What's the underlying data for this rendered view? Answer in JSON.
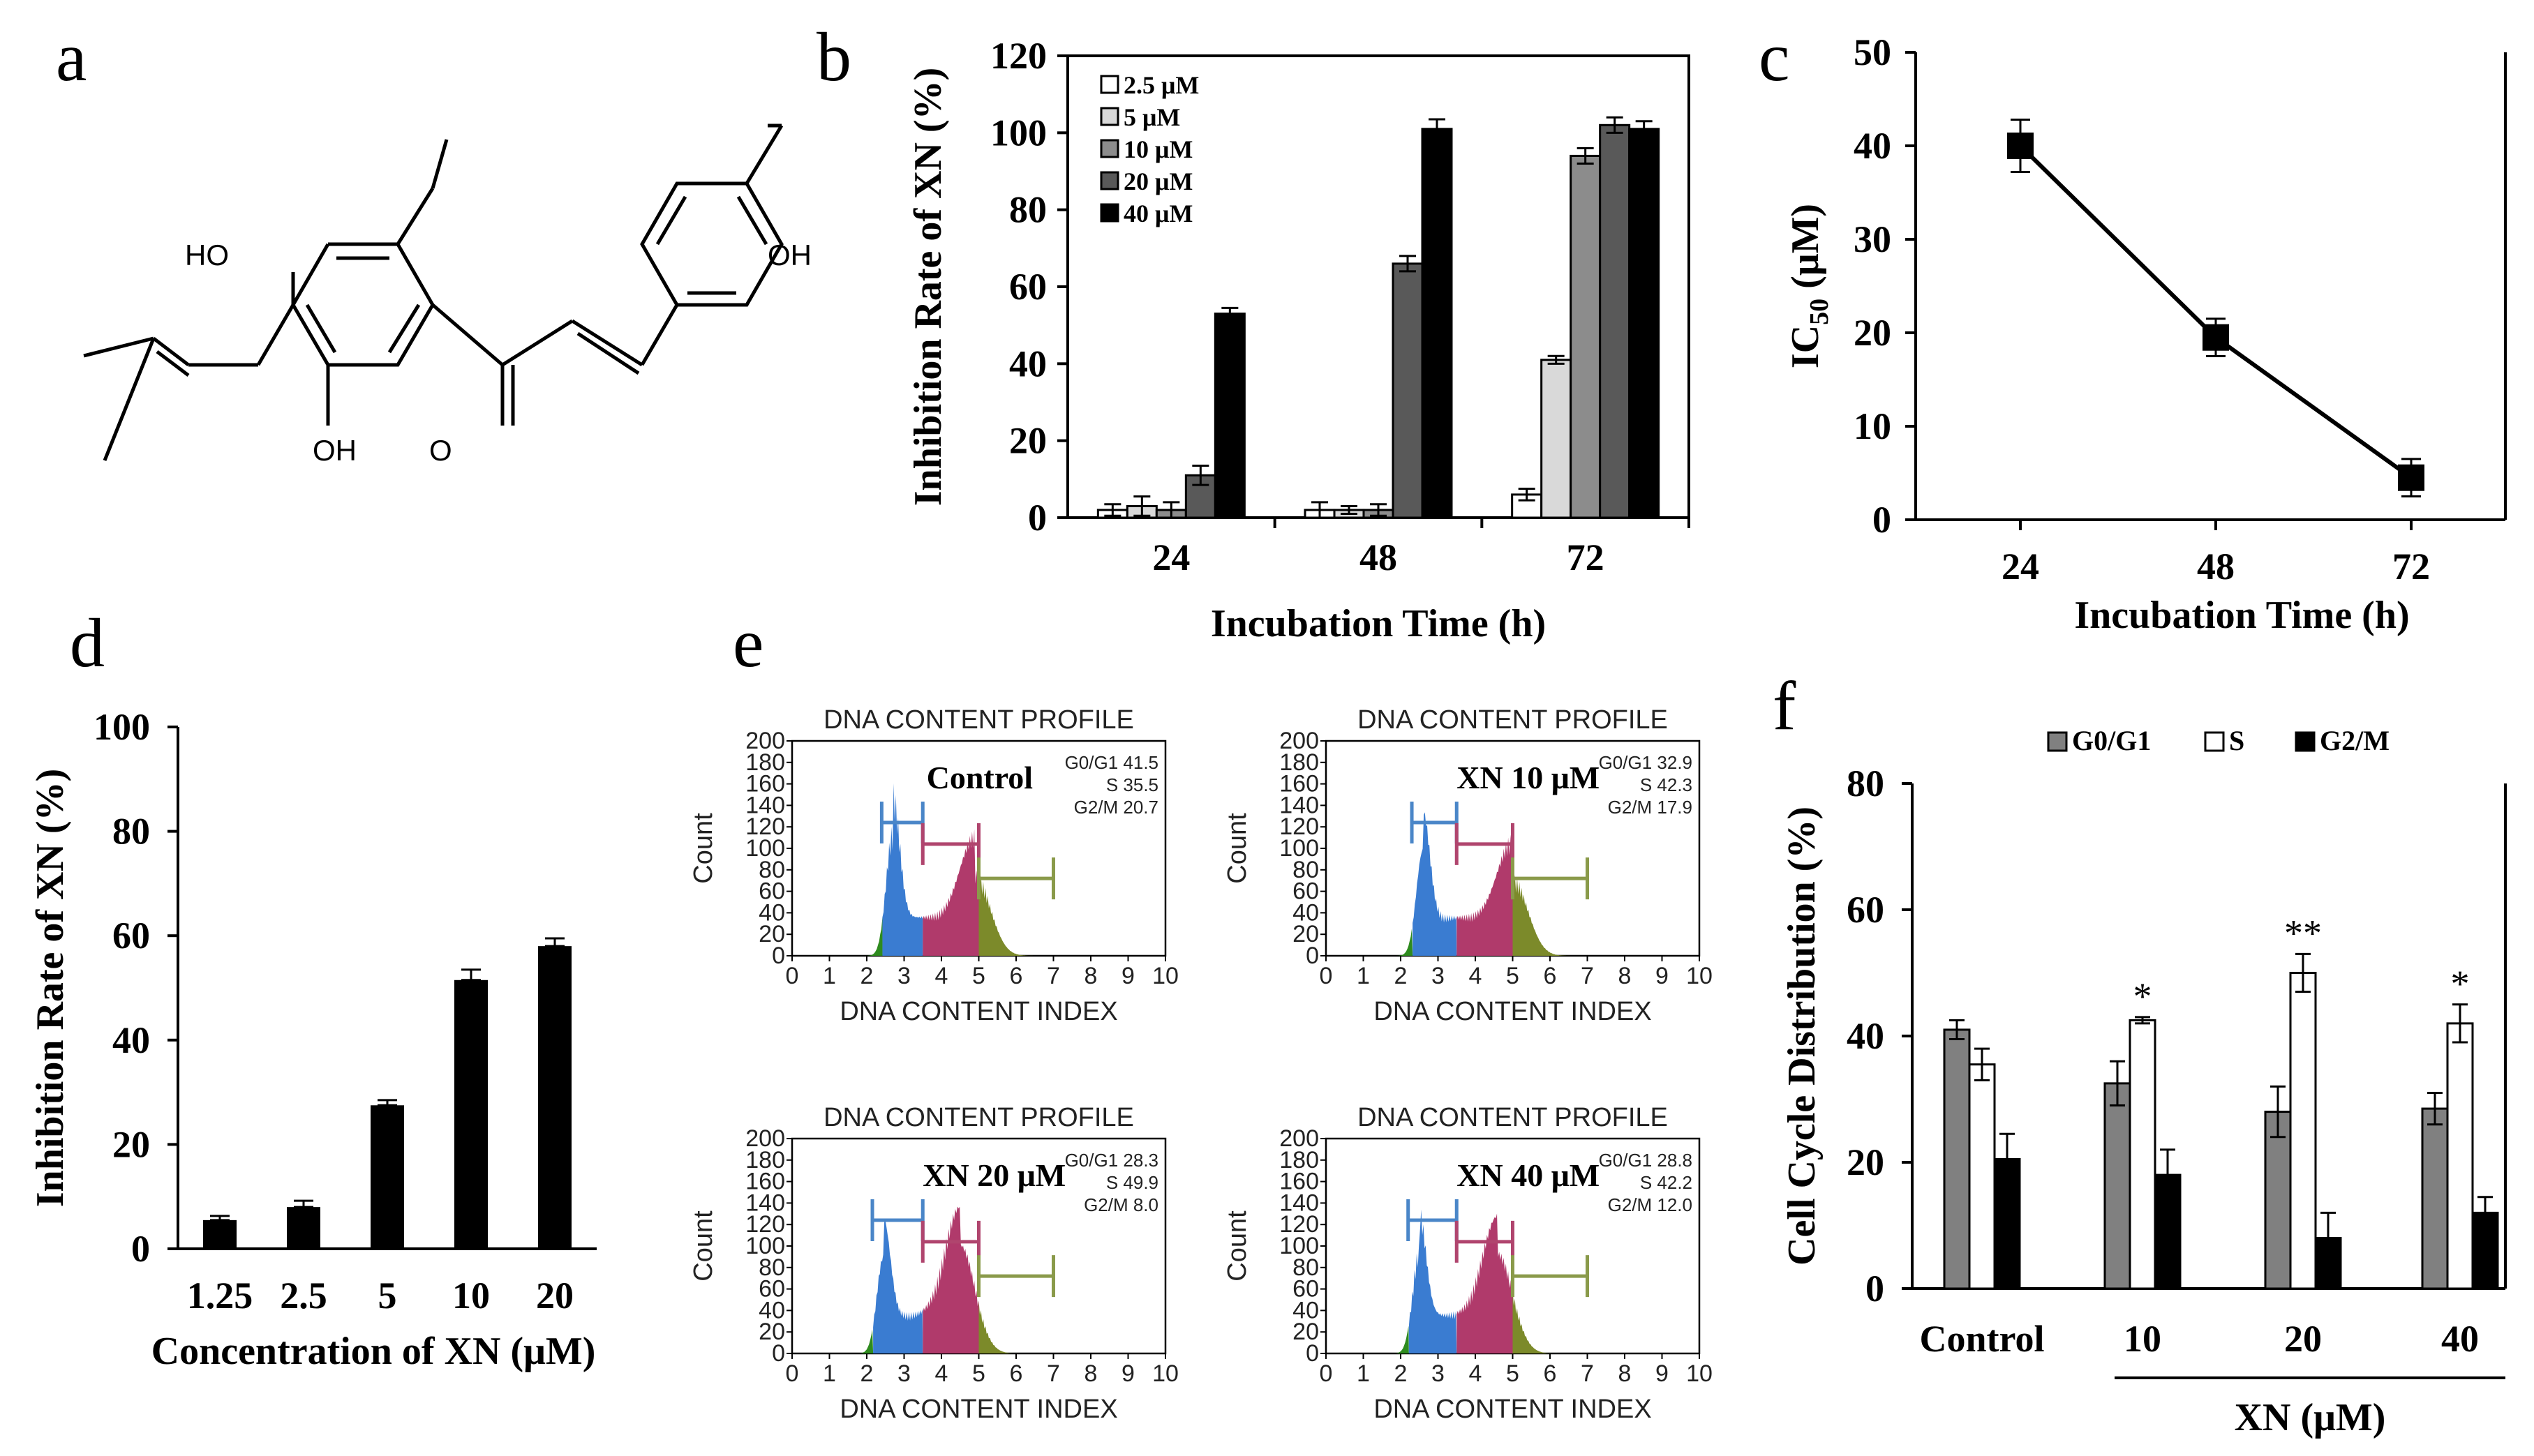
{
  "panel_letters": [
    "a",
    "b",
    "c",
    "d",
    "e",
    "f"
  ],
  "structure": {
    "atom_labels": [
      "HO",
      "OH",
      "OH",
      "O"
    ],
    "name": "xanthohumol chemical structure"
  },
  "colors": {
    "bar_black": "#000000",
    "bar_dark_gray": "#595959",
    "bar_mid_gray": "#8c8c8c",
    "bar_light_gray": "#d9d9d9",
    "bar_white": "#ffffff",
    "hist_green": "#2e8b1e",
    "hist_blue": "#3a7cd1",
    "hist_magenta": "#b03a6b",
    "hist_olive": "#7c8a2a",
    "gate_blue": "#4a86c8",
    "gate_magenta": "#b0456e",
    "gate_olive": "#8a9a4a"
  },
  "chart_data": [
    {
      "panel": "b",
      "type": "bar",
      "title": "",
      "xlabel": "Incubation Time (h)",
      "ylabel": "Inhibition Rate of XN (%)",
      "categories": [
        "24",
        "48",
        "72"
      ],
      "ylim": [
        0,
        120
      ],
      "yticks": [
        "0",
        "20",
        "40",
        "60",
        "80",
        "100",
        "120"
      ],
      "legend_position": "top-left",
      "series": [
        {
          "name": "2.5 μM",
          "color": "#ffffff",
          "values": [
            2,
            2,
            6
          ],
          "errors": [
            1.5,
            2,
            1.5
          ]
        },
        {
          "name": "5 μM",
          "color": "#d9d9d9",
          "values": [
            3,
            2,
            41
          ],
          "errors": [
            2.5,
            1,
            1
          ]
        },
        {
          "name": "10 μM",
          "color": "#8c8c8c",
          "values": [
            2,
            2,
            94
          ],
          "errors": [
            2,
            1.5,
            2
          ]
        },
        {
          "name": "20 μM",
          "color": "#595959",
          "values": [
            11,
            66,
            102
          ],
          "errors": [
            2.5,
            2,
            2
          ]
        },
        {
          "name": "40 μM",
          "color": "#000000",
          "values": [
            53,
            101,
            101
          ],
          "errors": [
            1.5,
            2.5,
            2
          ]
        }
      ]
    },
    {
      "panel": "c",
      "type": "line",
      "title": "",
      "xlabel": "Incubation Time (h)",
      "ylabel_main": "IC",
      "ylabel_sub": "50",
      "ylabel_unit": " (μM)",
      "categories": [
        "24",
        "48",
        "72"
      ],
      "values": [
        40,
        19.5,
        4.5
      ],
      "errors": [
        2.8,
        2,
        2
      ],
      "ylim": [
        0,
        50
      ],
      "yticks": [
        "0",
        "10",
        "20",
        "30",
        "40",
        "50"
      ]
    },
    {
      "panel": "d",
      "type": "bar",
      "title": "",
      "xlabel": "Concentration of XN (μM)",
      "ylabel": "Inhibition Rate of XN  (%)",
      "categories": [
        "1.25",
        "2.5",
        "5",
        "10",
        "20"
      ],
      "values": [
        5.5,
        8,
        27.5,
        51.5,
        58
      ],
      "errors": [
        0.8,
        1.2,
        1,
        2,
        1.5
      ],
      "ylim": [
        0,
        100
      ],
      "yticks": [
        "0",
        "20",
        "40",
        "60",
        "80",
        "100"
      ]
    },
    {
      "panel": "e",
      "type": "histogram",
      "plots": [
        {
          "title": "DNA CONTENT PROFILE",
          "label": "Control",
          "g0g1": "G0/G1 41.5",
          "s": "S 35.5",
          "g2m": "G2/M 20.7",
          "peak1": 2.7,
          "peak2": 4.9,
          "height1": 0.55,
          "height2": 0.36,
          "xmax": 10
        },
        {
          "title": "DNA CONTENT PROFILE",
          "label": "XN 10 μM",
          "g0g1": "G0/G1 32.9",
          "s": "S 42.3",
          "g2m": "G2/M 17.9",
          "peak1": 2.6,
          "peak2": 5.0,
          "height1": 0.47,
          "height2": 0.34,
          "xmax": 10
        },
        {
          "title": "DNA CONTENT PROFILE",
          "label": "XN 20 μM",
          "g0g1": "G0/G1 28.3",
          "s": "S 49.9",
          "g2m": "G2/M 8.0",
          "peak1": 2.45,
          "peak2": 4.5,
          "height1": 0.43,
          "height2": 0.48,
          "xmax": 10
        },
        {
          "title": "DNA CONTENT PROFILE",
          "label": "XN 40 μM",
          "g0g1": "G0/G1 28.8",
          "s": "S 42.2",
          "g2m": "G2/M 12.0",
          "peak1": 2.5,
          "peak2": 4.6,
          "height1": 0.45,
          "height2": 0.44,
          "xmax": 10
        }
      ],
      "xlabel": "DNA CONTENT INDEX",
      "ylabel": "Count",
      "yticks": [
        "0",
        "20",
        "40",
        "60",
        "80",
        "100",
        "120",
        "140",
        "160",
        "180",
        "200"
      ],
      "xticks": [
        "0",
        "1",
        "2",
        "3",
        "4",
        "5",
        "6",
        "7",
        "8",
        "9",
        "10"
      ]
    },
    {
      "panel": "f",
      "type": "bar",
      "title": "",
      "xlabel": "XN (μM)",
      "ylabel": "Cell Cycle Distribution (%)",
      "categories": [
        "Control",
        "10",
        "20",
        "40"
      ],
      "ylim": [
        0,
        80
      ],
      "yticks": [
        "0",
        "20",
        "40",
        "60",
        "80"
      ],
      "legend_position": "top",
      "series": [
        {
          "name": "G0/G1",
          "color": "#808080",
          "values": [
            41,
            32.5,
            28,
            28.5
          ],
          "errors": [
            1.5,
            3.5,
            4,
            2.5
          ]
        },
        {
          "name": "S",
          "color": "#ffffff",
          "values": [
            35.5,
            42.5,
            50,
            42
          ],
          "errors": [
            2.5,
            0.5,
            3,
            3
          ]
        },
        {
          "name": "G2/M",
          "color": "#000000",
          "values": [
            20.5,
            18,
            8,
            12
          ],
          "errors": [
            4,
            4,
            4,
            2.5
          ]
        }
      ],
      "significance": [
        "",
        "*",
        "**",
        "*"
      ]
    }
  ]
}
